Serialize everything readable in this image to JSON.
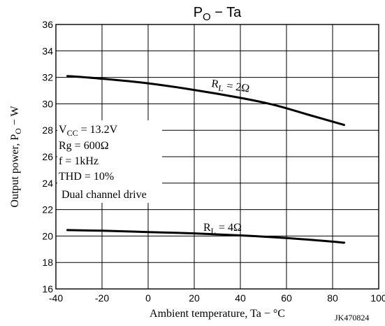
{
  "chart_data": {
    "type": "line",
    "title": {
      "main": "P",
      "sub": "O",
      "rest": " − Ta"
    },
    "xlabel": "Ambient temperature, Ta − °C",
    "ylabel": {
      "main": "Output power, P",
      "sub": "O",
      "rest": " − W"
    },
    "xlim": [
      -40,
      100
    ],
    "ylim": [
      16,
      36
    ],
    "xticks": [
      -40,
      -20,
      0,
      20,
      40,
      60,
      80,
      100
    ],
    "yticks": [
      16,
      18,
      20,
      22,
      24,
      26,
      28,
      30,
      32,
      34,
      36
    ],
    "grid": true,
    "series": [
      {
        "name": "RL = 2Ω",
        "x": [
          -35,
          -20,
          0,
          20,
          40,
          55,
          70,
          85
        ],
        "y": [
          32.1,
          31.9,
          31.55,
          31.05,
          30.45,
          29.9,
          29.15,
          28.4
        ]
      },
      {
        "name": "RL = 4Ω",
        "x": [
          -35,
          -20,
          0,
          20,
          40,
          60,
          75,
          85
        ],
        "y": [
          20.45,
          20.4,
          20.3,
          20.2,
          20.05,
          19.85,
          19.65,
          19.5
        ]
      }
    ],
    "annotations": {
      "rl2": {
        "main": "R",
        "sub": "L",
        "rest": " = 2Ω"
      },
      "rl4": {
        "main": "R",
        "sub": "L",
        "rest": " = 4Ω"
      },
      "conditions": {
        "vcc": {
          "main": "V",
          "sub": "CC",
          "rest": " = 13.2V"
        },
        "rg": "Rg = 600Ω",
        "f": "f = 1kHz",
        "thd": "THD = 10%",
        "drive": "Dual channel drive"
      }
    },
    "code": "JK470824"
  }
}
